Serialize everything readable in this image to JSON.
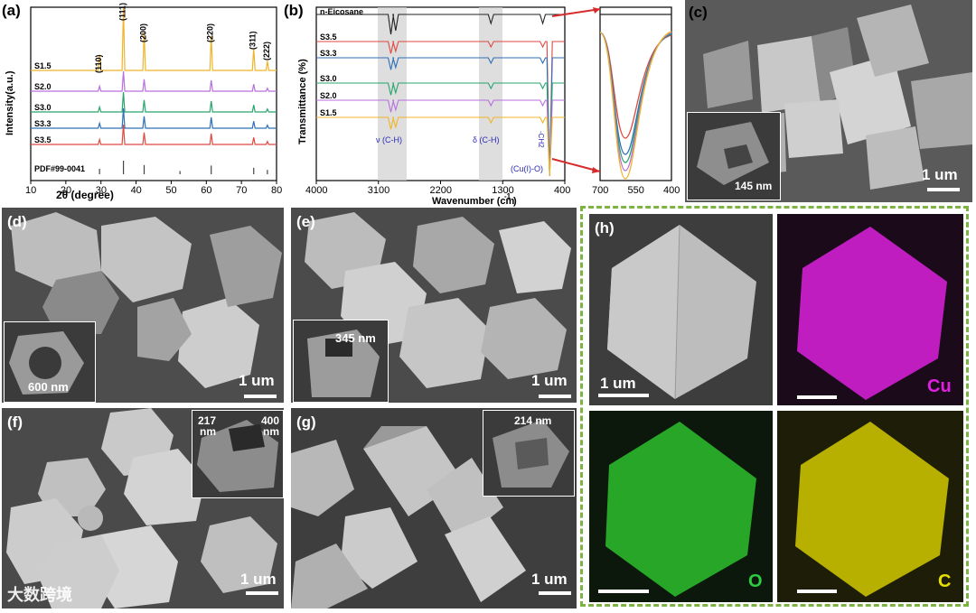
{
  "panels": {
    "a": {
      "label": "(a)",
      "xlabel": "2θ (degree)",
      "ylabel": "Intensity(a.u.)",
      "xticks": [
        "10",
        "20",
        "30",
        "40",
        "50",
        "60",
        "70",
        "80"
      ],
      "peaks": [
        "(110)",
        "(111)",
        "(200)",
        "(220)",
        "(311)",
        "(222)"
      ],
      "ref": "PDF#99-0041",
      "series": [
        {
          "name": "S1.5",
          "color": "#f0b429"
        },
        {
          "name": "S2.0",
          "color": "#b76ee0"
        },
        {
          "name": "S3.0",
          "color": "#27a56b"
        },
        {
          "name": "S3.3",
          "color": "#2d6fb8"
        },
        {
          "name": "S3.5",
          "color": "#e0483f"
        }
      ]
    },
    "b": {
      "label": "(b)",
      "xlabel": "Wavenumber (cm",
      "xlabel_sup": "-1",
      "xlabel_end": ")",
      "ylabel": "Transmittance (%)",
      "xticks": [
        "4000",
        "3100",
        "2200",
        "1300",
        "400"
      ],
      "series": [
        {
          "name": "n-Eicosane",
          "color": "#222222"
        },
        {
          "name": "S3.5",
          "color": "#e0483f"
        },
        {
          "name": "S3.3",
          "color": "#2d6fb8"
        },
        {
          "name": "S3.0",
          "color": "#27a56b"
        },
        {
          "name": "S2.0",
          "color": "#b76ee0"
        },
        {
          "name": "S1.5",
          "color": "#f0b429"
        }
      ],
      "annotations": [
        "ν (C-H)",
        "δ (C-H)",
        "-CH2",
        "(Cu(I)-O)"
      ],
      "zoom_xticks": [
        "700",
        "550",
        "400"
      ]
    },
    "c": {
      "label": "(c)",
      "scale": "1 um",
      "inset_dim": "145 nm"
    },
    "d": {
      "label": "(d)",
      "scale": "1 um",
      "inset_dim": "600 nm"
    },
    "e": {
      "label": "(e)",
      "scale": "1 um",
      "inset_dim": "345 nm"
    },
    "f": {
      "label": "(f)",
      "scale": "1 um",
      "inset_dim_1": "217",
      "inset_dim_1b": "nm",
      "inset_dim_2": "400",
      "inset_dim_2b": "nm"
    },
    "g": {
      "label": "(g)",
      "scale": "1 um",
      "inset_dim": "214 nm"
    },
    "h": {
      "label": "(h)",
      "scale": "1 um",
      "maps": [
        "Cu",
        "O",
        "C"
      ],
      "map_colors": {
        "Cu": "#e020e0",
        "O": "#2ecc40",
        "C": "#e8e000"
      }
    }
  },
  "watermark": "大数跨境",
  "chart_data": [
    {
      "type": "line",
      "title": "",
      "xlabel": "2θ (degree)",
      "ylabel": "Intensity(a.u.)",
      "xlim": [
        10,
        80
      ],
      "series": [
        {
          "name": "S1.5",
          "peaks": [
            29.6,
            36.4,
            42.3,
            61.4,
            73.5,
            77.4
          ]
        },
        {
          "name": "S2.0",
          "peaks": [
            29.6,
            36.4,
            42.3,
            61.4,
            73.5,
            77.4
          ]
        },
        {
          "name": "S3.0",
          "peaks": [
            29.6,
            36.4,
            42.3,
            61.4,
            73.5,
            77.4
          ]
        },
        {
          "name": "S3.3",
          "peaks": [
            29.6,
            36.4,
            42.3,
            61.4,
            73.5,
            77.4
          ]
        },
        {
          "name": "S3.5",
          "peaks": [
            29.6,
            36.4,
            42.3,
            61.4,
            73.5,
            77.4
          ]
        }
      ],
      "reference_peaks": [
        29.6,
        36.4,
        42.3,
        52.5,
        61.4,
        73.5,
        77.4
      ]
    },
    {
      "type": "line",
      "title": "",
      "xlabel": "Wavenumber (cm-1)",
      "ylabel": "Transmittance (%)",
      "xlim": [
        4000,
        400
      ],
      "series": [
        {
          "name": "n-Eicosane",
          "bands": [
            2920,
            2850,
            1470,
            720
          ]
        },
        {
          "name": "S3.5",
          "bands": [
            2920,
            2850,
            1470,
            720,
            620
          ]
        },
        {
          "name": "S3.3",
          "bands": [
            2920,
            2850,
            1470,
            720,
            620
          ]
        },
        {
          "name": "S3.0",
          "bands": [
            2920,
            2850,
            1470,
            720,
            620
          ]
        },
        {
          "name": "S2.0",
          "bands": [
            2920,
            2850,
            1470,
            720,
            620
          ]
        },
        {
          "name": "S1.5",
          "bands": [
            2920,
            2850,
            1470,
            720,
            620
          ]
        }
      ]
    }
  ]
}
